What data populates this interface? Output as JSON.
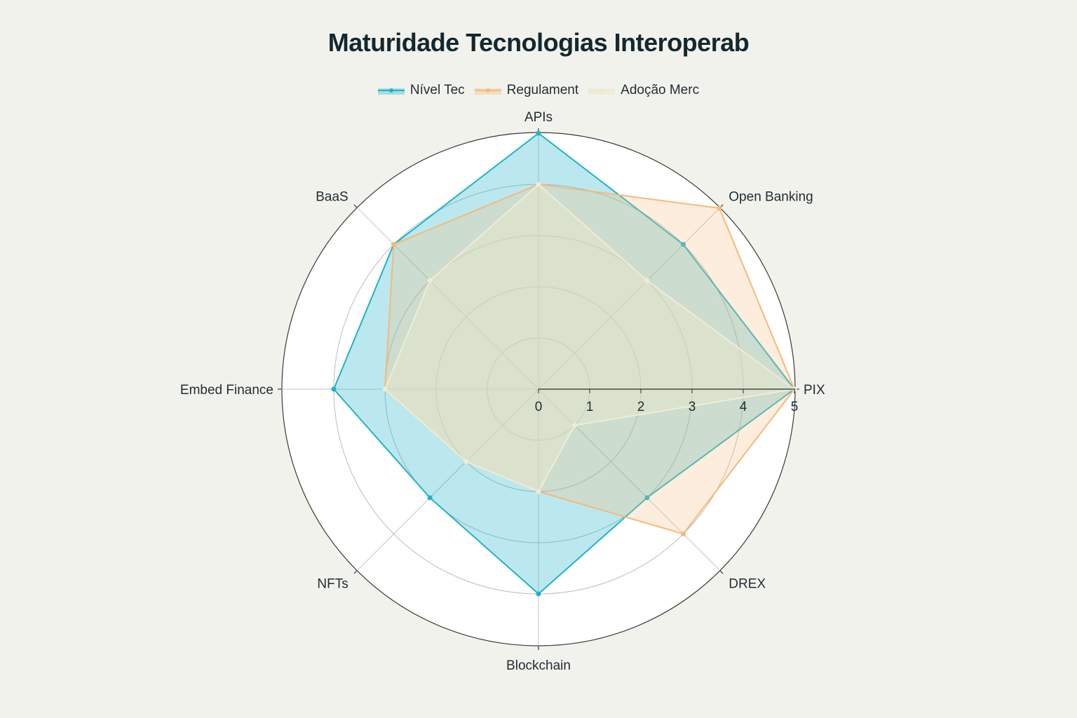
{
  "chart_data": {
    "type": "radar",
    "title": "Maturidade Tecnologias Interoperab",
    "categories": [
      "APIs",
      "Open Banking",
      "PIX",
      "DREX",
      "Blockchain",
      "NFTs",
      "Embed Finance",
      "BaaS"
    ],
    "series": [
      {
        "name": "Nível Tec",
        "values": [
          5,
          4,
          5,
          3,
          4,
          3,
          4,
          4
        ],
        "color": "#1fb3c8",
        "fill": "rgba(31,179,200,0.30)"
      },
      {
        "name": "Regulament",
        "values": [
          4,
          5,
          5,
          4,
          2,
          2,
          3,
          4
        ],
        "color": "#f5b97a",
        "fill": "rgba(248,190,130,0.28)"
      },
      {
        "name": "Adoção Merc",
        "values": [
          4,
          3,
          5,
          1,
          2,
          2,
          3,
          3
        ],
        "color": "#f0ecd4",
        "fill": "rgba(236,232,205,0.45)"
      }
    ],
    "radial_axis": {
      "range": [
        0,
        5
      ],
      "ticks": [
        "0",
        "1",
        "2",
        "3",
        "4",
        "5"
      ]
    },
    "grid": true,
    "legend_position": "top"
  },
  "title": "Maturidade Tecnologias Interoperab",
  "legend": [
    {
      "label": "Nível Tec",
      "color": "#1fb3c8",
      "band": "rgba(31,179,200,0.35)"
    },
    {
      "label": "Regulament",
      "color": "#f5b97a",
      "band": "rgba(248,190,130,0.40)"
    },
    {
      "label": "Adoção Merc",
      "color": "#ece8cd",
      "band": "rgba(236,232,205,0.55)"
    }
  ]
}
